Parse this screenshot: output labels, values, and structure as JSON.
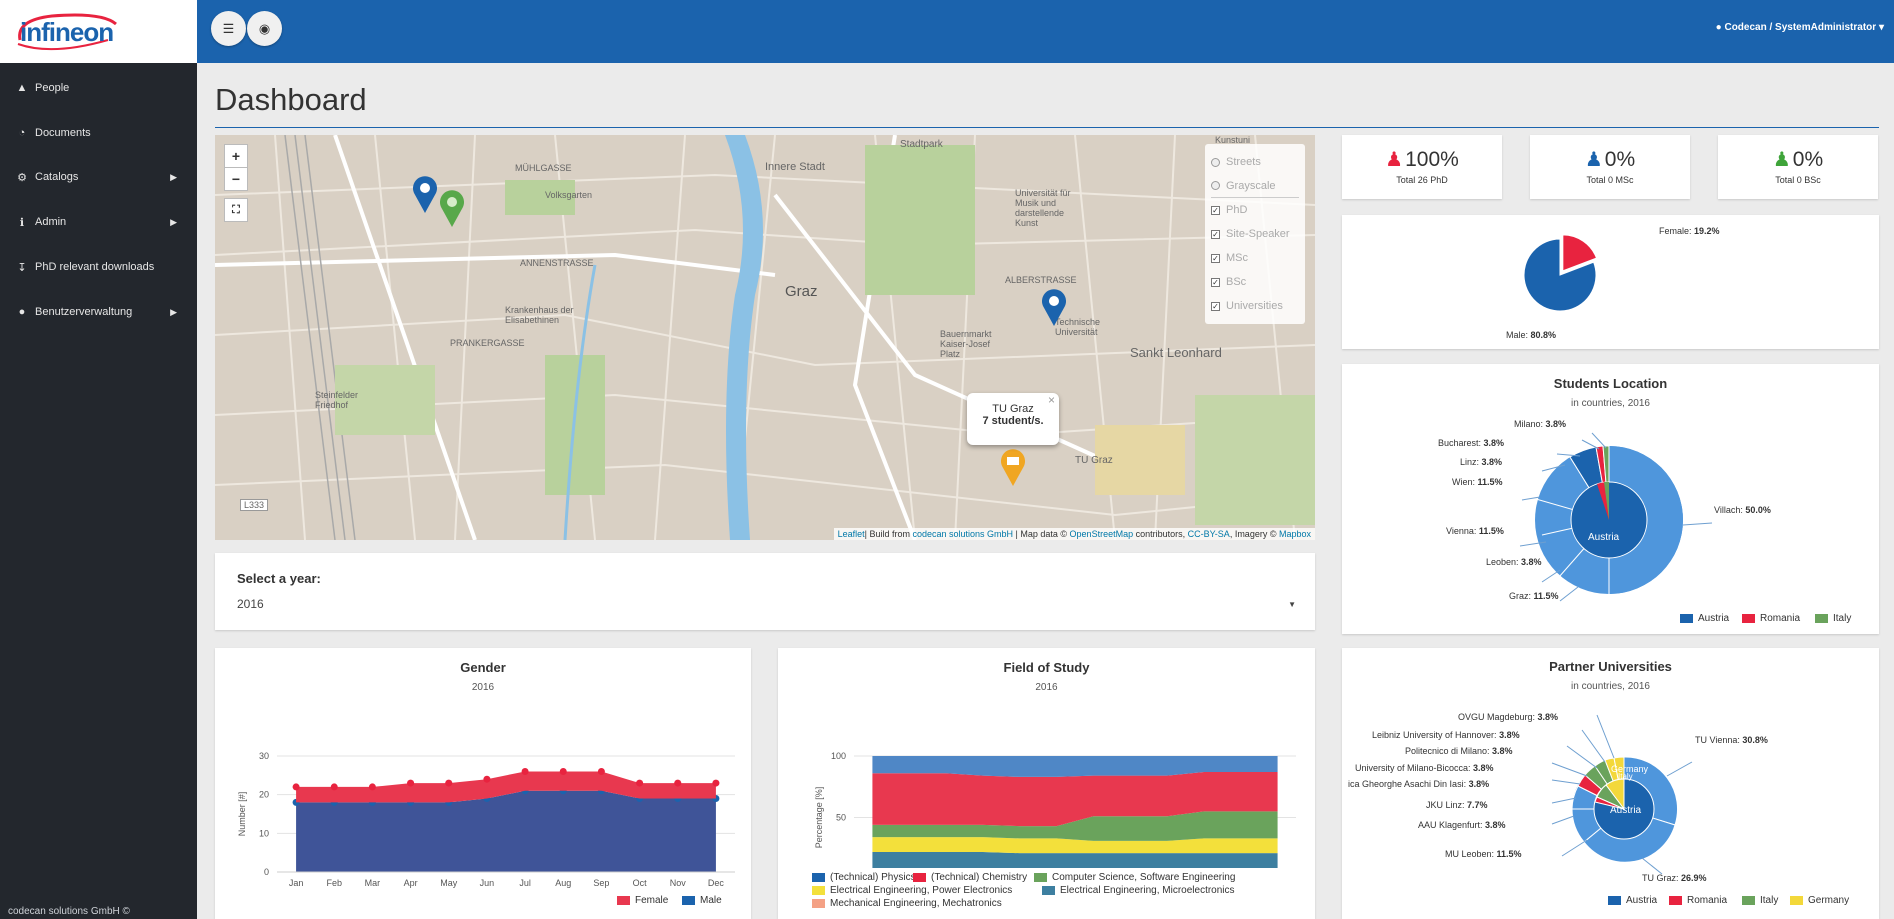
{
  "brand": {
    "logo_text": "infineon",
    "footer": "codecan solutions GmbH ©"
  },
  "sidebar": {
    "items": [
      {
        "label": "People",
        "icon": "person-icon",
        "submenu": false
      },
      {
        "label": "Documents",
        "icon": "dashboard-icon",
        "submenu": false
      },
      {
        "label": "Catalogs",
        "icon": "gears-icon",
        "submenu": true
      },
      {
        "label": "Admin",
        "icon": "info-icon",
        "submenu": true
      },
      {
        "label": "PhD relevant downloads",
        "icon": "download-icon",
        "submenu": false
      },
      {
        "label": "Benutzerverwaltung",
        "icon": "users-icon",
        "submenu": true
      }
    ]
  },
  "topbar": {
    "user": "Codecan / SystemAdministrator"
  },
  "page": {
    "title": "Dashboard"
  },
  "map": {
    "layers": [
      {
        "label": "Streets",
        "type": "radio"
      },
      {
        "label": "Grayscale",
        "type": "radio"
      },
      {
        "label": "PhD",
        "type": "checkbox",
        "checked": true
      },
      {
        "label": "Site-Speaker",
        "type": "checkbox",
        "checked": true
      },
      {
        "label": "MSc",
        "type": "checkbox",
        "checked": true
      },
      {
        "label": "BSc",
        "type": "checkbox",
        "checked": true
      },
      {
        "label": "Universities",
        "type": "checkbox",
        "checked": true
      }
    ],
    "popup": {
      "title": "TU Graz",
      "text": "7 student/s."
    },
    "labels": {
      "innere_stadt": "Innere Stadt",
      "stadtpark": "Stadtpark",
      "graz": "Graz",
      "sankt_leonhard": "Sankt Leonhard",
      "muehlgasse": "MÜHLGASSE",
      "volksgarten": "Volksgarten",
      "annenstrasse": "ANNENSTRASSE",
      "krankenhaus": "Krankenhaus der Elisabethinen",
      "steinfelder": "Steinfelder Friedhof",
      "tu_graz": "TU Graz",
      "techn_uni": "Technische Universität",
      "bauernmarkt": "Bauernmarkt Kaiser-Josef Platz",
      "univ_musik": "Universität für Musik und darstellende Kunst",
      "road": "L333",
      "kunstuni": "Kunstuni",
      "prankergasse": "PRANKERGASSE",
      "albertstrasse": "ALBERSTRASSE"
    },
    "attribution": {
      "leaflet": "Leaflet",
      "build": "| Build from ",
      "codecan": "codecan solutions GmbH",
      "mapdata": " | Map data © ",
      "osm": "OpenStreetMap",
      "contrib": " contributors, ",
      "license": "CC-BY-SA",
      "imagery": ", Imagery © ",
      "mapbox": "Mapbox"
    }
  },
  "year_select": {
    "label": "Select a year:",
    "value": "2016"
  },
  "stats": [
    {
      "value": "100%",
      "label": "Total 26 PhD",
      "color": "#e8233f"
    },
    {
      "value": "0%",
      "label": "Total 0 MSc",
      "color": "#1b63ad"
    },
    {
      "value": "0%",
      "label": "Total 0 BSc",
      "color": "#3fa43a"
    }
  ],
  "gender_pie": {
    "female": {
      "name": "Female",
      "pct": "19.2%",
      "value": 19.2,
      "color": "#e8233f"
    },
    "male": {
      "name": "Male",
      "pct": "80.8%",
      "value": 80.8,
      "color": "#1b63ad"
    }
  },
  "students_location": {
    "title": "Students Location",
    "subtitle": "in countries, 2016",
    "inner_label": "Austria",
    "slices": [
      {
        "name": "Villach",
        "pct": "50.0%",
        "value": 50.0
      },
      {
        "name": "Graz",
        "pct": "11.5%",
        "value": 11.5
      },
      {
        "name": "Leoben",
        "pct": "3.8%",
        "value": 3.8
      },
      {
        "name": "Vienna",
        "pct": "11.5%",
        "value": 11.5
      },
      {
        "name": "Wien",
        "pct": "11.5%",
        "value": 11.5
      },
      {
        "name": "Linz",
        "pct": "3.8%",
        "value": 3.8
      },
      {
        "name": "Bucharest",
        "pct": "3.8%",
        "value": 3.8
      },
      {
        "name": "Milano",
        "pct": "3.8%",
        "value": 3.8
      }
    ],
    "legend": [
      {
        "name": "Austria",
        "color": "#1b63ad"
      },
      {
        "name": "Romania",
        "color": "#e8233f"
      },
      {
        "name": "Italy",
        "color": "#6aa35c"
      }
    ]
  },
  "partner_universities": {
    "title": "Partner Universities",
    "subtitle": "in countries, 2016",
    "inner_labels": {
      "austria": "Austria",
      "germany": "Germany",
      "italy": "Italy"
    },
    "slices": [
      {
        "name": "TU Vienna",
        "pct": "30.8%",
        "value": 30.8
      },
      {
        "name": "TU Graz",
        "pct": "26.9%",
        "value": 26.9
      },
      {
        "name": "MU Leoben",
        "pct": "11.5%",
        "value": 11.5
      },
      {
        "name": "AAU Klagenfurt",
        "pct": "3.8%",
        "value": 3.8
      },
      {
        "name": "JKU Linz",
        "pct": "7.7%",
        "value": 7.7
      },
      {
        "name": "ica Gheorghe Asachi Din Iasi",
        "pct": "3.8%",
        "value": 3.8
      },
      {
        "name": "University of Milano-Bicocca",
        "pct": "3.8%",
        "value": 3.8
      },
      {
        "name": "Politecnico di Milano",
        "pct": "3.8%",
        "value": 3.8
      },
      {
        "name": "Leibniz University of Hannover",
        "pct": "3.8%",
        "value": 3.8
      },
      {
        "name": "OVGU Magdeburg",
        "pct": "3.8%",
        "value": 3.8
      }
    ],
    "legend": [
      {
        "name": "Austria",
        "color": "#1b63ad"
      },
      {
        "name": "Romania",
        "color": "#e8233f"
      },
      {
        "name": "Italy",
        "color": "#6aa35c"
      },
      {
        "name": "Germany",
        "color": "#f3d83a"
      }
    ]
  },
  "chart_data": [
    {
      "type": "area",
      "title": "Gender",
      "subtitle": "2016",
      "ylabel": "Number [#]",
      "ylim": [
        0,
        30
      ],
      "yticks": [
        0,
        10,
        20,
        30
      ],
      "categories": [
        "Jan",
        "Feb",
        "Mar",
        "Apr",
        "May",
        "Jun",
        "Jul",
        "Aug",
        "Sep",
        "Oct",
        "Nov",
        "Dec"
      ],
      "series": [
        {
          "name": "Female",
          "color": "#e8384f",
          "values": [
            4,
            4,
            4,
            5,
            5,
            5,
            5,
            5,
            5,
            4,
            4,
            4
          ]
        },
        {
          "name": "Male",
          "color": "#3f5498",
          "values": [
            18,
            18,
            18,
            18,
            18,
            19,
            21,
            21,
            21,
            19,
            19,
            19
          ]
        }
      ],
      "stacked": true,
      "legend_position": "bottom-right"
    },
    {
      "type": "area",
      "title": "Field of Study",
      "subtitle": "2016",
      "ylabel": "Percentage [%]",
      "ylim": [
        0,
        100
      ],
      "yticks": [
        0,
        50,
        100
      ],
      "categories": [
        "Jan",
        "Feb",
        "Mar",
        "Apr",
        "May",
        "Jun",
        "Jul",
        "Aug",
        "Sep",
        "Oct",
        "Nov",
        "Dec"
      ],
      "stacked_percent": true,
      "series": [
        {
          "name": "Mechanical Engineering, Mechatronics",
          "color": "#f4a185",
          "values": [
            5,
            5,
            5,
            5,
            5,
            5,
            5,
            5,
            5,
            5,
            5,
            5
          ]
        },
        {
          "name": "Electrical Engineering, Microelectronics",
          "color": "#3d7fa0",
          "values": [
            17,
            17,
            17,
            17,
            16,
            16,
            16,
            16,
            16,
            16,
            16,
            16
          ]
        },
        {
          "name": "Electrical Engineering, Power Electronics",
          "color": "#f3e03b",
          "values": [
            12,
            12,
            12,
            12,
            12,
            12,
            10,
            10,
            10,
            12,
            12,
            12
          ]
        },
        {
          "name": "Computer Science, Software Engineering",
          "color": "#6aa35c",
          "values": [
            10,
            10,
            10,
            10,
            10,
            10,
            20,
            20,
            20,
            22,
            22,
            22
          ]
        },
        {
          "name": "(Technical) Chemistry",
          "color": "#e8384f",
          "values": [
            42,
            42,
            42,
            40,
            40,
            40,
            33,
            33,
            33,
            32,
            32,
            32
          ]
        },
        {
          "name": "(Technical) Physics",
          "color": "#4f87c6",
          "values": [
            14,
            14,
            14,
            16,
            17,
            17,
            16,
            16,
            16,
            13,
            13,
            13
          ]
        }
      ],
      "legend_position": "bottom"
    }
  ]
}
